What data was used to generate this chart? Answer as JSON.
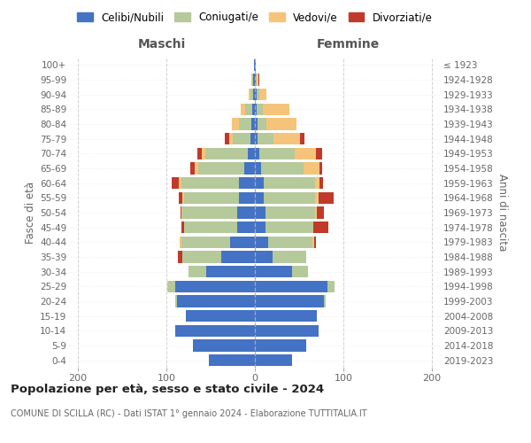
{
  "age_groups": [
    "100+",
    "95-99",
    "90-94",
    "85-89",
    "80-84",
    "75-79",
    "70-74",
    "65-69",
    "60-64",
    "55-59",
    "50-54",
    "45-49",
    "40-44",
    "35-39",
    "30-34",
    "25-29",
    "20-24",
    "15-19",
    "10-14",
    "5-9",
    "0-4"
  ],
  "birth_years": [
    "≤ 1923",
    "1924-1928",
    "1929-1933",
    "1934-1938",
    "1939-1943",
    "1944-1948",
    "1949-1953",
    "1954-1958",
    "1959-1963",
    "1964-1968",
    "1969-1973",
    "1974-1978",
    "1979-1983",
    "1984-1988",
    "1989-1993",
    "1994-1998",
    "1999-2003",
    "2004-2008",
    "2009-2013",
    "2014-2018",
    "2019-2023"
  ],
  "maschi_celibi": [
    1,
    2,
    2,
    3,
    4,
    5,
    8,
    12,
    18,
    18,
    20,
    20,
    28,
    38,
    55,
    90,
    88,
    78,
    90,
    70,
    52
  ],
  "maschi_coniugati": [
    0,
    1,
    3,
    8,
    14,
    20,
    48,
    52,
    65,
    62,
    62,
    60,
    55,
    44,
    20,
    8,
    2,
    0,
    0,
    0,
    0
  ],
  "maschi_vedovi": [
    0,
    1,
    2,
    5,
    8,
    4,
    4,
    4,
    3,
    2,
    1,
    0,
    2,
    0,
    0,
    1,
    0,
    0,
    0,
    0,
    0
  ],
  "maschi_divorziati": [
    0,
    0,
    0,
    0,
    0,
    5,
    5,
    5,
    8,
    4,
    1,
    3,
    0,
    5,
    0,
    0,
    0,
    0,
    0,
    0,
    0
  ],
  "femmine_nubili": [
    1,
    1,
    2,
    2,
    3,
    3,
    5,
    7,
    10,
    10,
    12,
    12,
    15,
    20,
    42,
    82,
    78,
    70,
    72,
    58,
    42
  ],
  "femmine_coniugate": [
    0,
    1,
    3,
    7,
    10,
    18,
    40,
    48,
    58,
    58,
    56,
    54,
    50,
    38,
    18,
    8,
    2,
    0,
    0,
    0,
    0
  ],
  "femmine_vedove": [
    0,
    2,
    8,
    30,
    34,
    30,
    24,
    18,
    5,
    4,
    2,
    0,
    2,
    0,
    0,
    0,
    0,
    0,
    0,
    0,
    0
  ],
  "femmine_divorziate": [
    0,
    1,
    0,
    0,
    0,
    5,
    7,
    3,
    4,
    17,
    8,
    17,
    2,
    0,
    0,
    0,
    0,
    0,
    0,
    0,
    0
  ],
  "colors_celibi": "#4472c4",
  "colors_coniugati": "#b5c99a",
  "colors_vedovi": "#f5c47a",
  "colors_divorziati": "#c0392b",
  "xlim": 210,
  "bg_color": "#ffffff",
  "title": "Popolazione per età, sesso e stato civile - 2024",
  "subtitle": "COMUNE DI SCILLA (RC) - Dati ISTAT 1° gennaio 2024 - Elaborazione TUTTITALIA.IT",
  "header_left": "Maschi",
  "header_right": "Femmine",
  "ylabel_left": "Fasce di età",
  "ylabel_right": "Anni di nascita"
}
